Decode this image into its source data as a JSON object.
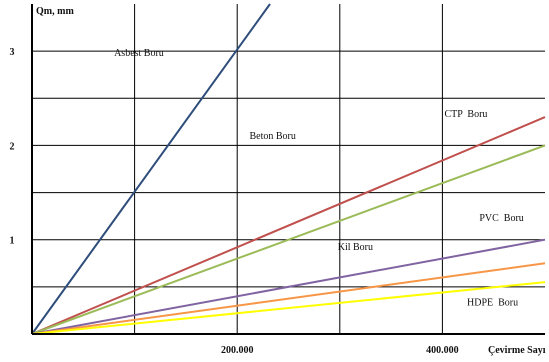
{
  "chart_data": {
    "type": "line",
    "title": "",
    "ylabel": "Qm, mm",
    "xlabel": "Çevirme Sayı",
    "xlim": [
      0,
      500000
    ],
    "ylim": [
      0,
      3.5
    ],
    "x_ticks": [
      {
        "value": 200000,
        "label": "200.000"
      },
      {
        "value": 400000,
        "label": "400.000"
      }
    ],
    "y_ticks": [
      {
        "value": 1,
        "label": "1"
      },
      {
        "value": 2,
        "label": "2"
      },
      {
        "value": 3,
        "label": "3"
      }
    ],
    "x_grid": [
      100000,
      200000,
      300000,
      400000
    ],
    "y_grid": [
      0.5,
      1,
      1.5,
      2,
      2.5,
      3
    ],
    "grid": true,
    "series": [
      {
        "name": "Asbest Boru",
        "color": "#2e4d7b",
        "points": [
          [
            0,
            0
          ],
          [
            232000,
            3.5
          ]
        ]
      },
      {
        "name": "CTP  Boru",
        "color": "#c0504d",
        "points": [
          [
            0,
            0
          ],
          [
            500000,
            2.3
          ]
        ]
      },
      {
        "name": "Beton Boru",
        "color": "#9bbb59",
        "points": [
          [
            0,
            0
          ],
          [
            500000,
            2.0
          ]
        ]
      },
      {
        "name": "PVC  Boru",
        "color": "#8064a2",
        "points": [
          [
            0,
            0
          ],
          [
            500000,
            1.0
          ]
        ]
      },
      {
        "name": "Kil Boru",
        "color": "#f79646",
        "points": [
          [
            0,
            0
          ],
          [
            500000,
            0.75
          ]
        ]
      },
      {
        "name": "HDPE  Boru",
        "color": "#ffff00",
        "points": [
          [
            0,
            0
          ],
          [
            500000,
            0.55
          ]
        ]
      }
    ],
    "annotations": [
      {
        "text": "Asbest Boru",
        "x": 80000,
        "y": 2.95
      },
      {
        "text": "Beton Boru",
        "x": 212000,
        "y": 2.07
      },
      {
        "text": "CTP  Boru",
        "x": 402000,
        "y": 2.3
      },
      {
        "text": "PVC  Boru",
        "x": 436000,
        "y": 1.2
      },
      {
        "text": "Kil Boru",
        "x": 298000,
        "y": 0.89
      },
      {
        "text": "HDPE  Boru",
        "x": 424000,
        "y": 0.3
      }
    ]
  }
}
